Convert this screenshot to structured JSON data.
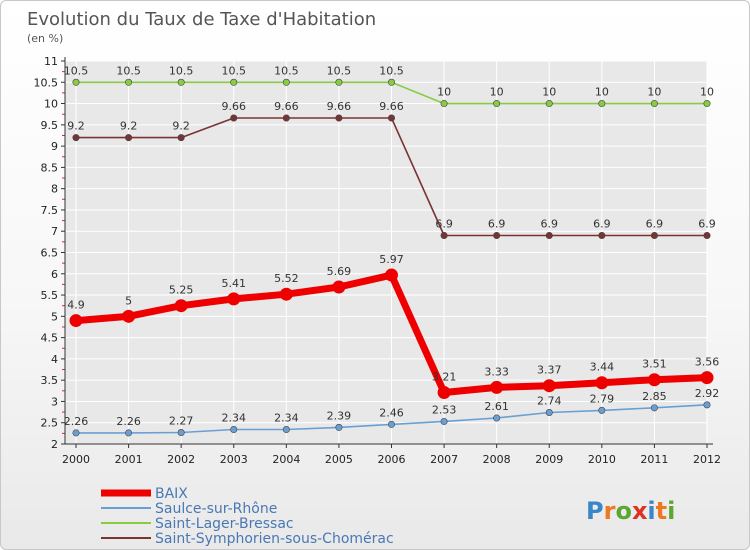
{
  "header": {
    "title": "Evolution du Taux de Taxe d'Habitation",
    "subtitle": "(en %)"
  },
  "logo": {
    "text": "Proxiti"
  },
  "colors": {
    "axis": "#333333",
    "grid": "#ffffff",
    "plot_bg": "#e8e8e8",
    "legend_text": "#4a78b5"
  },
  "chart_data": {
    "type": "line",
    "title": "Evolution du Taux de Taxe d'Habitation",
    "subtitle": "(en %)",
    "xlabel": "",
    "ylabel": "",
    "x": [
      "2000",
      "2001",
      "2002",
      "2003",
      "2004",
      "2005",
      "2006",
      "2007",
      "2008",
      "2009",
      "2010",
      "2011",
      "2012"
    ],
    "ylim": [
      2,
      11
    ],
    "yticks": [
      "2",
      "2.5",
      "3",
      "3.5",
      "4",
      "4.5",
      "5",
      "5.5",
      "6",
      "6.5",
      "7",
      "7.5",
      "8",
      "8.5",
      "9",
      "9.5",
      "10",
      "10.5",
      "11"
    ],
    "grid": true,
    "legend_position": "bottom-left",
    "series": [
      {
        "name": "BAIX",
        "color": "#ee0000",
        "thick": true,
        "values": [
          4.9,
          5,
          5.25,
          5.41,
          5.52,
          5.69,
          5.97,
          3.21,
          3.33,
          3.37,
          3.44,
          3.51,
          3.56
        ],
        "labels": [
          "4.9",
          "5",
          "5.25",
          "5.41",
          "5.52",
          "5.69",
          "5.97",
          "3.21",
          "3.33",
          "3.37",
          "3.44",
          "3.51",
          "3.56"
        ]
      },
      {
        "name": "Saulce-sur-Rhône",
        "color": "#6a9fd4",
        "thick": false,
        "values": [
          2.26,
          2.26,
          2.27,
          2.34,
          2.34,
          2.39,
          2.46,
          2.53,
          2.61,
          2.74,
          2.79,
          2.85,
          2.92
        ],
        "labels": [
          "2.26",
          "2.26",
          "2.27",
          "2.34",
          "2.34",
          "2.39",
          "2.46",
          "2.53",
          "2.61",
          "2.74",
          "2.79",
          "2.85",
          "2.92"
        ]
      },
      {
        "name": "Saint-Lager-Bressac",
        "color": "#88cc44",
        "thick": false,
        "values": [
          10.5,
          10.5,
          10.5,
          10.5,
          10.5,
          10.5,
          10.5,
          10,
          10,
          10,
          10,
          10,
          10
        ],
        "labels": [
          "10.5",
          "10.5",
          "10.5",
          "10.5",
          "10.5",
          "10.5",
          "10.5",
          "10",
          "10",
          "10",
          "10",
          "10",
          "10"
        ]
      },
      {
        "name": "Saint-Symphorien-sous-Chomérac",
        "color": "#7a3333",
        "thick": false,
        "values": [
          9.2,
          9.2,
          9.2,
          9.66,
          9.66,
          9.66,
          9.66,
          6.9,
          6.9,
          6.9,
          6.9,
          6.9,
          6.9
        ],
        "labels": [
          "9.2",
          "9.2",
          "9.2",
          "9.66",
          "9.66",
          "9.66",
          "9.66",
          "6.9",
          "6.9",
          "6.9",
          "6.9",
          "6.9",
          "6.9"
        ]
      }
    ]
  }
}
